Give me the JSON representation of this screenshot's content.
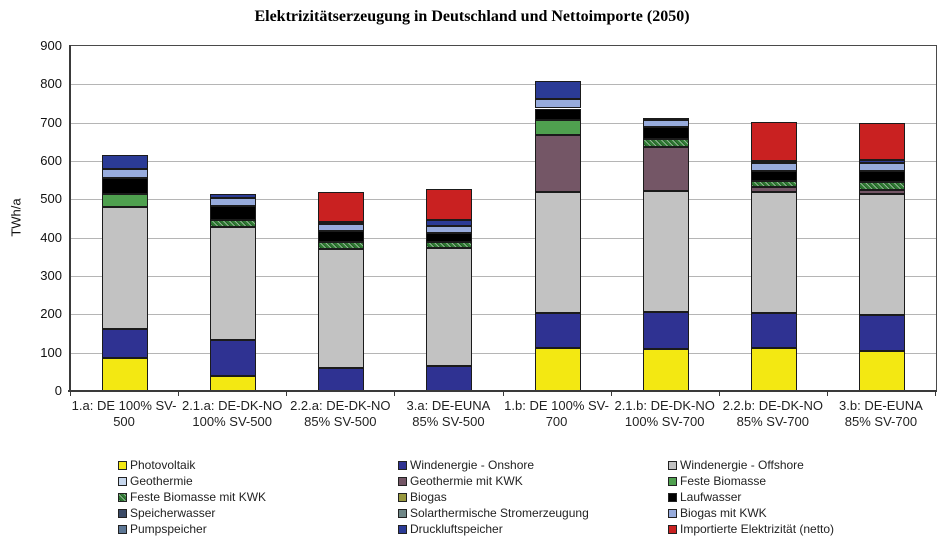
{
  "chart_data": {
    "type": "bar",
    "stacked": true,
    "title": "Elektrizitätserzeugung in Deutschland und Nettoimporte (2050)",
    "xlabel": "",
    "ylabel": "TWh/a",
    "ylim": [
      0,
      900
    ],
    "ytick_step": 100,
    "grid": true,
    "legend_position": "bottom",
    "categories": [
      "1.a: DE 100% SV-500",
      "2.1.a: DE-DK-NO 100% SV-500",
      "2.2.a: DE-DK-NO 85% SV-500",
      "3.a: DE-EUNA 85% SV-500",
      "1.b: DE 100% SV-700",
      "2.1.b: DE-DK-NO 100% SV-700",
      "2.2.b: DE-DK-NO 85% SV-700",
      "3.b: DE-EUNA 85% SV-700"
    ],
    "series": [
      {
        "name": "Photovoltaik",
        "color": "#f3e812",
        "hatch": false,
        "values": [
          87,
          40,
          0,
          0,
          113,
          110,
          112,
          105
        ]
      },
      {
        "name": "Windenergie - Onshore",
        "color": "#2f3292",
        "hatch": false,
        "values": [
          76,
          93,
          60,
          65,
          90,
          95,
          91,
          92
        ]
      },
      {
        "name": "Windenergie - Offshore",
        "color": "#c2c2c2",
        "hatch": false,
        "values": [
          316,
          296,
          311,
          308,
          315,
          317,
          315,
          318
        ]
      },
      {
        "name": "Geothermie",
        "color": "#c8d8ee",
        "hatch": false,
        "values": [
          0,
          0,
          0,
          0,
          0,
          0,
          0,
          0
        ]
      },
      {
        "name": "Geothermie mit KWK",
        "color": "#745666",
        "hatch": false,
        "values": [
          0,
          0,
          0,
          0,
          149,
          114,
          13,
          10
        ]
      },
      {
        "name": "Feste Biomasse",
        "color": "#4fa04f",
        "hatch": false,
        "values": [
          36,
          0,
          0,
          0,
          39,
          0,
          0,
          0
        ]
      },
      {
        "name": "Feste Biomasse mit KWK",
        "color": "#2f7a33",
        "hatch": true,
        "values": [
          0,
          18,
          17,
          17,
          0,
          22,
          17,
          20
        ]
      },
      {
        "name": "Biogas",
        "color": "#99993f",
        "hatch": false,
        "values": [
          0,
          0,
          0,
          0,
          0,
          0,
          0,
          0
        ]
      },
      {
        "name": "Laufwasser",
        "color": "#000000",
        "hatch": false,
        "values": [
          40,
          35,
          29,
          22,
          31,
          31,
          27,
          30
        ]
      },
      {
        "name": "Speicherwasser",
        "color": "#3a4a66",
        "hatch": false,
        "values": [
          0,
          0,
          0,
          0,
          0,
          0,
          0,
          0
        ]
      },
      {
        "name": "Solarthermische Stromerzeugung",
        "color": "#6f8787",
        "hatch": false,
        "values": [
          0,
          0,
          0,
          0,
          0,
          0,
          0,
          0
        ]
      },
      {
        "name": "Biogas mit KWK",
        "color": "#97abdc",
        "hatch": false,
        "values": [
          25,
          21,
          19,
          18,
          26,
          17,
          19,
          20
        ]
      },
      {
        "name": "Pumpspeicher",
        "color": "#5d7795",
        "hatch": false,
        "values": [
          0,
          0,
          0,
          0,
          0,
          0,
          0,
          0
        ]
      },
      {
        "name": "Druckluftspeicher",
        "color": "#2b3b96",
        "hatch": false,
        "values": [
          35,
          10,
          6,
          16,
          45,
          4,
          7,
          7
        ]
      },
      {
        "name": "Importierte Elektrizität (netto)",
        "color": "#c92121",
        "hatch": false,
        "values": [
          0,
          0,
          76,
          80,
          0,
          0,
          102,
          98
        ]
      }
    ]
  },
  "legend_columns": [
    [
      "Photovoltaik",
      "Geothermie",
      "Feste Biomasse mit KWK",
      "Speicherwasser",
      "Pumpspeicher"
    ],
    [
      "Windenergie - Onshore",
      "Geothermie mit KWK",
      "Biogas",
      "Solarthermische Stromerzeugung",
      "Druckluftspeicher"
    ],
    [
      "Windenergie - Offshore",
      "Feste Biomasse",
      "Laufwasser",
      "Biogas mit KWK",
      "Importierte Elektrizität (netto)"
    ]
  ]
}
